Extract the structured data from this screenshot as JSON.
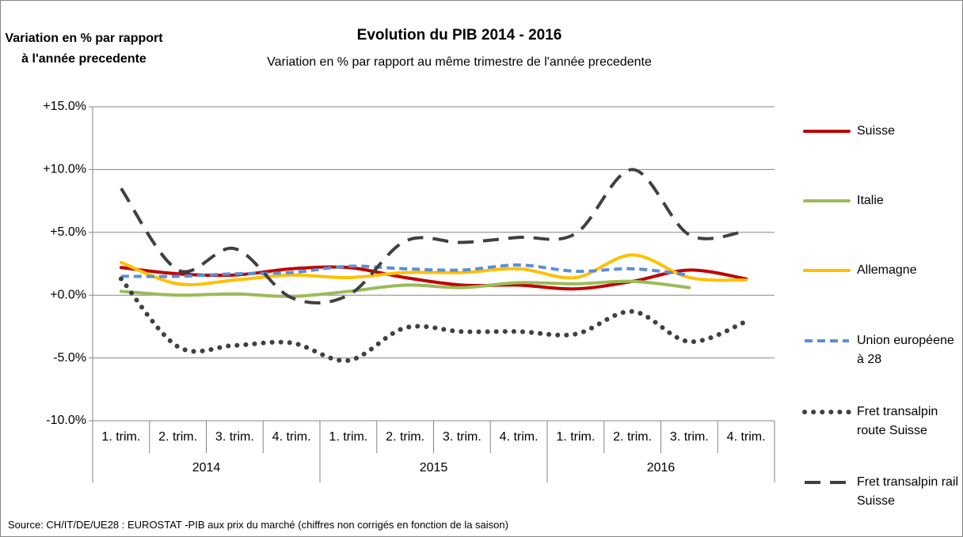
{
  "chart_data": {
    "type": "line",
    "title": "Evolution du PIB 2014 - 2016",
    "subtitle": "Variation en % par rapport au même trimestre de l'année precedente",
    "y_axis_title": "Variation en % par rapport à l'année precedente",
    "source": "Source: CH/IT/DE/UE28 : EUROSTAT -PIB aux prix du marché (chiffres non corrigés en fonction de la saison)",
    "categories": [
      "1. trim.",
      "2. trim.",
      "3. trim.",
      "4. trim.",
      "1. trim.",
      "2. trim.",
      "3. trim.",
      "4. trim.",
      "1. trim.",
      "2. trim.",
      "3. trim.",
      "4. trim."
    ],
    "category_groups": [
      {
        "label": "2014",
        "span": 4
      },
      {
        "label": "2015",
        "span": 4
      },
      {
        "label": "2016",
        "span": 4
      }
    ],
    "ylim": [
      -10,
      15
    ],
    "yticks": [
      {
        "value": -10,
        "label": "-10.0%"
      },
      {
        "value": -5,
        "label": "-5.0%"
      },
      {
        "value": 0,
        "label": "+0.0%"
      },
      {
        "value": 5,
        "label": "+5.0%"
      },
      {
        "value": 10,
        "label": "+10.0%"
      },
      {
        "value": 15,
        "label": "+15.0%"
      }
    ],
    "grid": true,
    "legend": "right",
    "series": [
      {
        "name": "Suisse",
        "color": "#c00000",
        "dash": "solid",
        "values": [
          2.2,
          1.7,
          1.6,
          2.1,
          2.2,
          1.4,
          0.8,
          0.8,
          0.5,
          1.1,
          2.0,
          1.3
        ]
      },
      {
        "name": "Italie",
        "color": "#9bbb59",
        "dash": "solid",
        "values": [
          0.3,
          0.0,
          0.1,
          -0.1,
          0.3,
          0.8,
          0.6,
          1.0,
          0.9,
          1.1,
          0.6,
          null
        ]
      },
      {
        "name": "Allemagne",
        "color": "#ffc000",
        "dash": "solid",
        "values": [
          2.6,
          0.9,
          1.2,
          1.6,
          1.4,
          1.8,
          1.8,
          2.1,
          1.4,
          3.2,
          1.4,
          1.2
        ]
      },
      {
        "name": "Union européene à 28",
        "color": "#5b8fd6",
        "dash": "dashed",
        "values": [
          1.5,
          1.5,
          1.7,
          1.8,
          2.3,
          2.1,
          2.0,
          2.4,
          1.9,
          2.1,
          1.6,
          null
        ]
      },
      {
        "name": "Fret transalpin route Suisse",
        "color": "#404040",
        "dash": "dotted",
        "values": [
          1.3,
          -4.1,
          -4.0,
          -3.8,
          -5.2,
          -2.6,
          -2.9,
          -2.9,
          -3.1,
          -1.3,
          -3.7,
          -2.1
        ]
      },
      {
        "name": "Fret transalpin rail Suisse",
        "color": "#404040",
        "dash": "long-dash",
        "values": [
          8.5,
          2.0,
          3.7,
          -0.2,
          0.0,
          4.3,
          4.2,
          4.6,
          4.9,
          10.0,
          4.8,
          5.1
        ]
      }
    ]
  }
}
